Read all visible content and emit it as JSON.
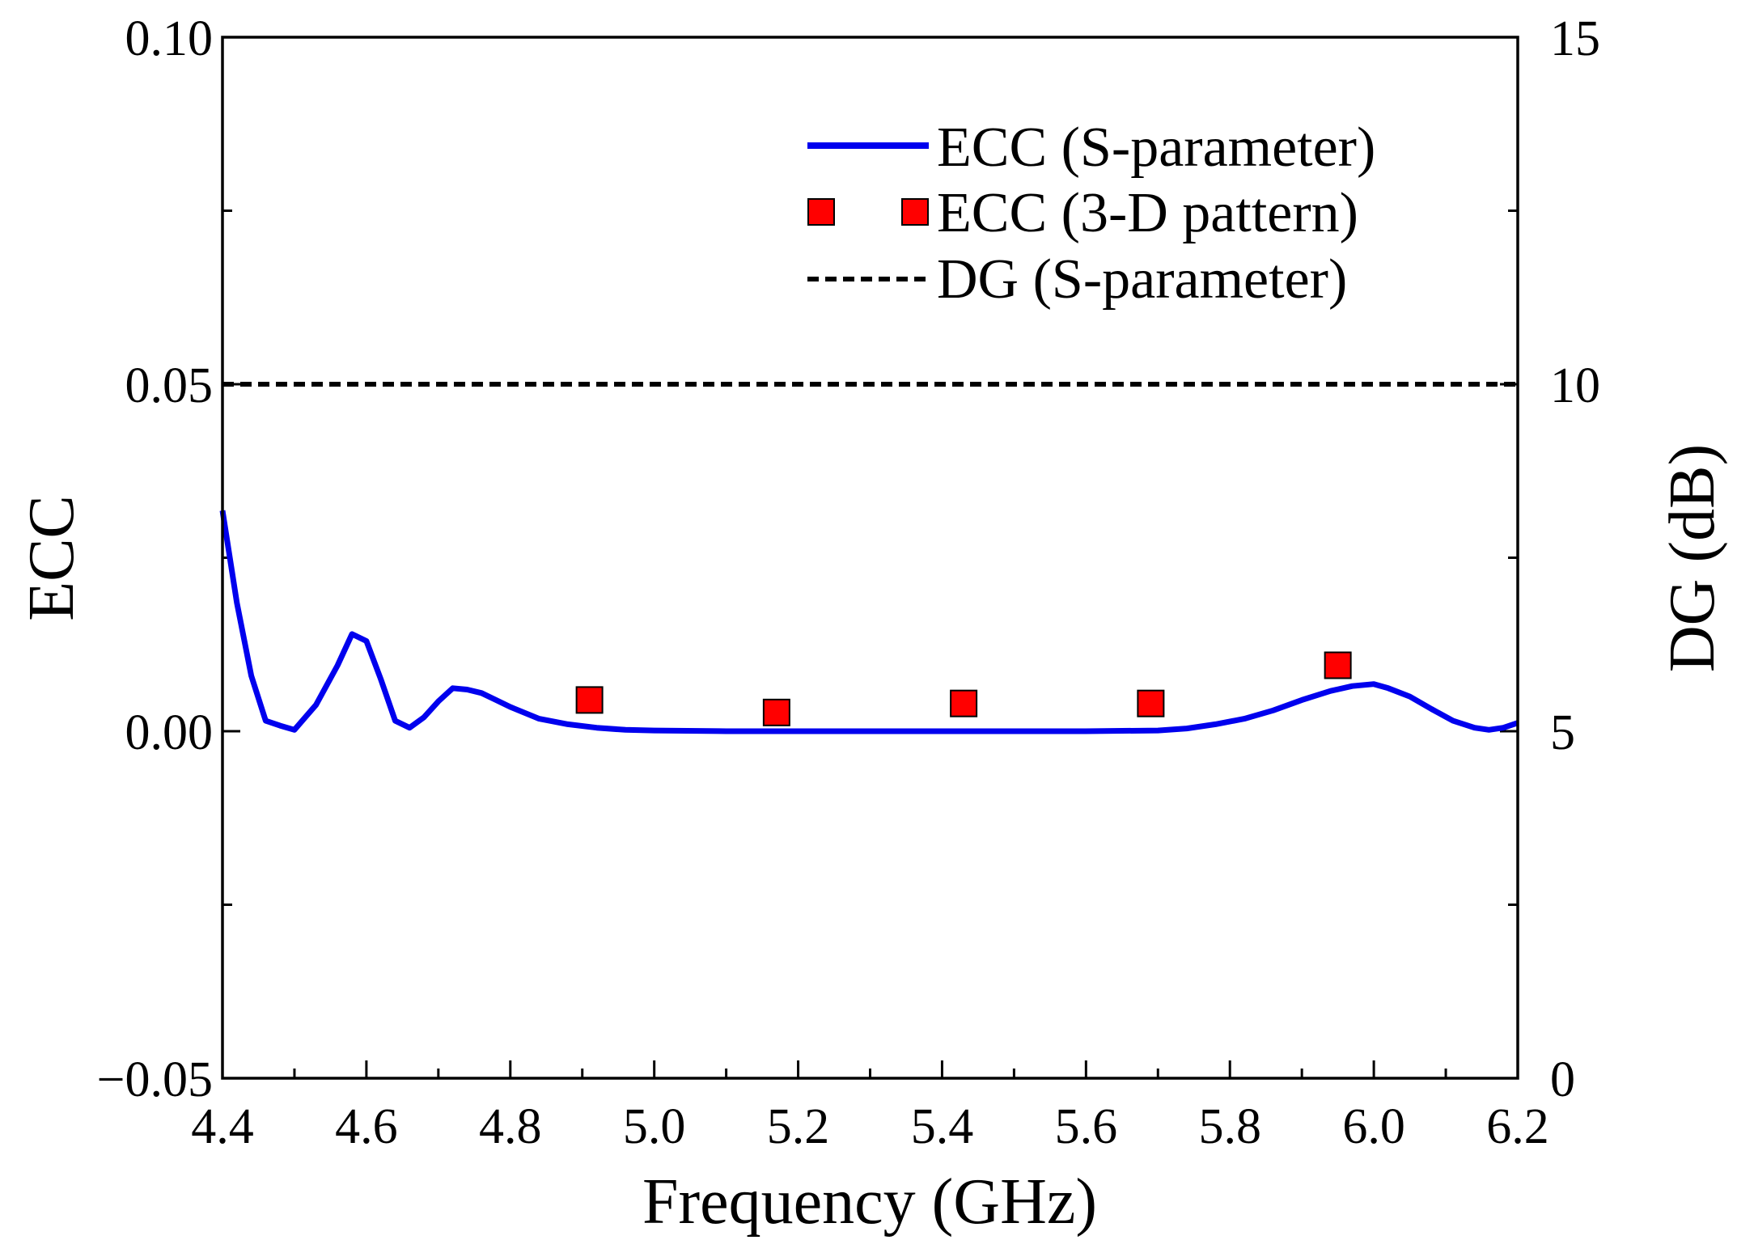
{
  "chart_data": {
    "type": "line",
    "xlabel": "Frequency (GHz)",
    "ylabel": "ECC",
    "y2label": "DG (dB)",
    "xlim": [
      4.4,
      6.2
    ],
    "ylim": [
      -0.05,
      0.1
    ],
    "y2lim": [
      0,
      15
    ],
    "x_ticks": [
      4.4,
      4.6,
      4.8,
      5.0,
      5.2,
      5.4,
      5.6,
      5.8,
      6.0,
      6.2
    ],
    "x_tick_labels": [
      "4.4",
      "4.6",
      "4.8",
      "5.0",
      "5.2",
      "5.4",
      "5.6",
      "5.8",
      "6.0",
      "6.2"
    ],
    "y_ticks": [
      -0.05,
      0.0,
      0.05,
      0.1
    ],
    "y_tick_labels": [
      "−0.05",
      "0.00",
      "0.05",
      "0.10"
    ],
    "y2_ticks": [
      0,
      5,
      10,
      15
    ],
    "y2_tick_labels": [
      "0",
      "5",
      "10",
      "15"
    ],
    "legend_position": "top-right",
    "series": [
      {
        "name": "ECC (S-parameter)",
        "style": "solid-line",
        "color": "#0000ee",
        "axis": "left",
        "x": [
          4.4,
          4.42,
          4.44,
          4.46,
          4.48,
          4.5,
          4.53,
          4.56,
          4.58,
          4.6,
          4.62,
          4.64,
          4.66,
          4.68,
          4.7,
          4.72,
          4.74,
          4.76,
          4.78,
          4.8,
          4.84,
          4.88,
          4.92,
          4.96,
          5.0,
          5.1,
          5.2,
          5.4,
          5.6,
          5.7,
          5.74,
          5.78,
          5.82,
          5.86,
          5.9,
          5.94,
          5.97,
          6.0,
          6.02,
          6.05,
          6.08,
          6.11,
          6.14,
          6.16,
          6.18,
          6.2
        ],
        "y": [
          0.0318,
          0.0185,
          0.008,
          0.0015,
          0.0008,
          0.0002,
          0.0038,
          0.0095,
          0.014,
          0.013,
          0.0075,
          0.0015,
          0.0005,
          0.002,
          0.0043,
          0.0062,
          0.006,
          0.0055,
          0.0045,
          0.0035,
          0.0018,
          0.001,
          0.0005,
          0.0002,
          0.0001,
          0.0,
          0.0,
          0.0,
          0.0,
          0.0001,
          0.0004,
          0.001,
          0.0018,
          0.003,
          0.0045,
          0.0058,
          0.0065,
          0.0068,
          0.0062,
          0.005,
          0.0032,
          0.0015,
          0.0005,
          0.0002,
          0.0005,
          0.0012
        ]
      },
      {
        "name": "ECC (3-D pattern)",
        "style": "square-markers",
        "color": "#ff0000",
        "axis": "left",
        "x": [
          4.91,
          5.17,
          5.43,
          5.69,
          5.95
        ],
        "y": [
          0.0045,
          0.0027,
          0.004,
          0.004,
          0.0095
        ]
      },
      {
        "name": "DG (S-parameter)",
        "style": "dashed-line",
        "color": "#000000",
        "axis": "right",
        "x": [
          4.4,
          6.2
        ],
        "y": [
          10,
          10
        ]
      }
    ]
  }
}
